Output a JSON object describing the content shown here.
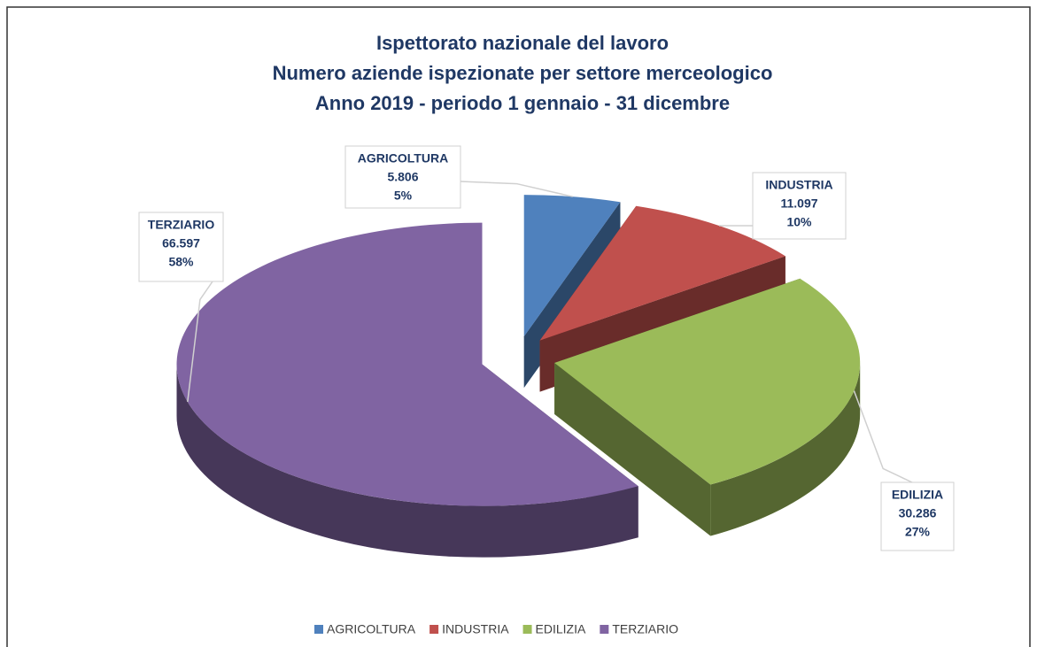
{
  "chart_data": {
    "type": "pie3d",
    "title": [
      "Ispettorato nazionale del lavoro",
      "Numero aziende ispezionate per settore merceologico",
      "Anno 2019 - periodo 1 gennaio - 31 dicembre"
    ],
    "categories": [
      "AGRICOLTURA",
      "INDUSTRIA",
      "EDILIZIA",
      "TERZIARIO"
    ],
    "values": [
      5806,
      11097,
      30286,
      66597
    ],
    "value_labels": [
      "5.806",
      "11.097",
      "30.286",
      "66.597"
    ],
    "percent_labels": [
      "5%",
      "10%",
      "27%",
      "58%"
    ],
    "colors": [
      "#4f81bd",
      "#c0504d",
      "#9bbb59",
      "#8064a2"
    ],
    "legend": "bottom"
  }
}
